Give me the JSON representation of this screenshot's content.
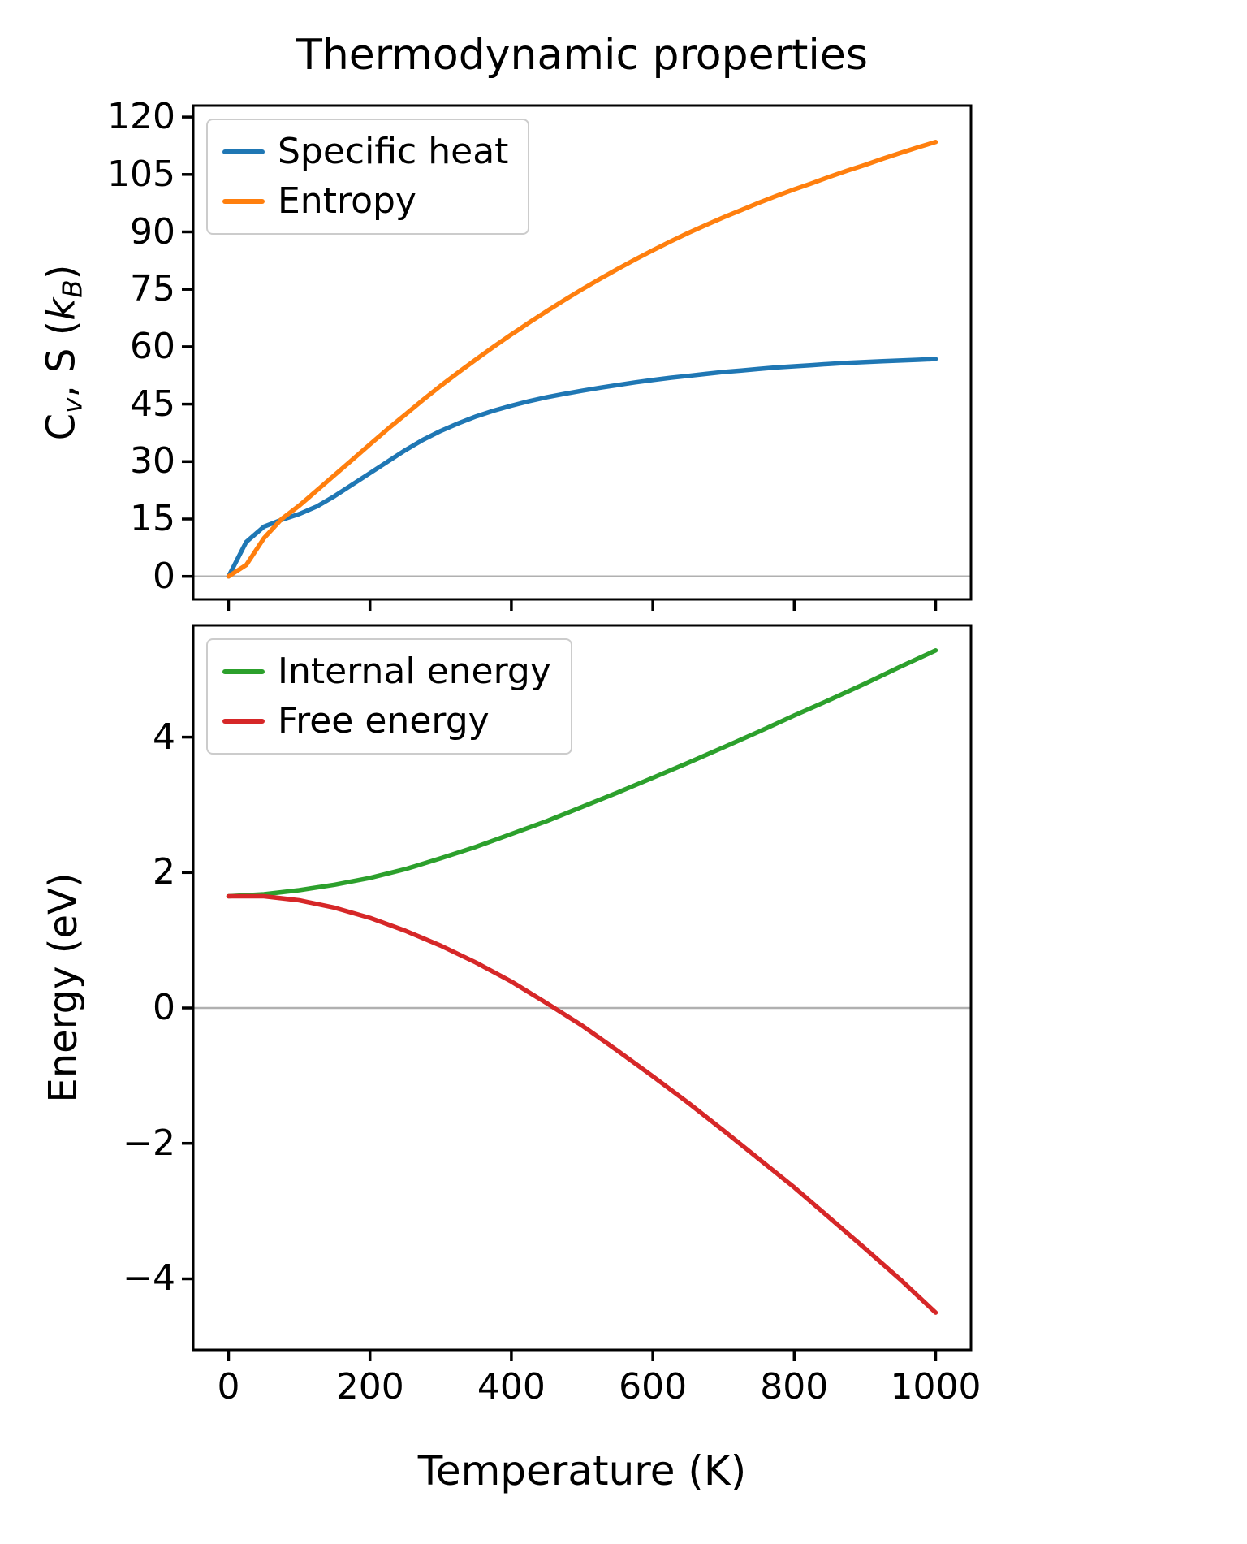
{
  "figure": {
    "title": "Thermodynamic properties",
    "xlabel": "Temperature (K)"
  },
  "chart_data": [
    {
      "type": "line",
      "title": "Thermodynamic properties",
      "xlabel": "Temperature (K)",
      "ylabel": "C$_v$, S ($k_B$)",
      "xlim": [
        -50,
        1050
      ],
      "ylim": [
        -6,
        123
      ],
      "xticks": [
        0,
        200,
        400,
        600,
        800,
        1000
      ],
      "yticks": [
        0,
        15,
        30,
        45,
        60,
        75,
        90,
        105,
        120
      ],
      "show_x_tick_labels": false,
      "zero_line": true,
      "grid": false,
      "legend_position": "upper-left",
      "x": [
        0,
        25,
        50,
        75,
        100,
        125,
        150,
        175,
        200,
        225,
        250,
        275,
        300,
        325,
        350,
        375,
        400,
        425,
        450,
        475,
        500,
        525,
        550,
        575,
        600,
        625,
        650,
        675,
        700,
        725,
        750,
        775,
        800,
        825,
        850,
        875,
        900,
        925,
        950,
        975,
        1000
      ],
      "series": [
        {
          "name": "Specific heat",
          "color": "#1f77b4",
          "values": [
            0,
            9,
            13,
            14.8,
            16.3,
            18.3,
            21,
            24,
            27,
            30,
            33,
            35.7,
            38,
            40,
            41.8,
            43.3,
            44.6,
            45.8,
            46.8,
            47.7,
            48.5,
            49.3,
            50,
            50.7,
            51.3,
            51.9,
            52.4,
            52.9,
            53.4,
            53.8,
            54.2,
            54.6,
            54.9,
            55.2,
            55.5,
            55.8,
            56,
            56.2,
            56.4,
            56.6,
            56.8
          ]
        },
        {
          "name": "Entropy",
          "color": "#ff7f0e",
          "values": [
            0,
            3,
            10,
            15,
            18.5,
            22.5,
            26.5,
            30.5,
            34.5,
            38.5,
            42.3,
            46.1,
            49.8,
            53.3,
            56.7,
            60,
            63.2,
            66.3,
            69.3,
            72.2,
            75,
            77.7,
            80.3,
            82.8,
            85.2,
            87.5,
            89.7,
            91.8,
            93.8,
            95.7,
            97.6,
            99.4,
            101.1,
            102.7,
            104.4,
            106,
            107.5,
            109.1,
            110.6,
            112.1,
            113.5
          ]
        }
      ]
    },
    {
      "type": "line",
      "title": "",
      "xlabel": "Temperature (K)",
      "ylabel": "Energy (eV)",
      "xlim": [
        -50,
        1050
      ],
      "ylim": [
        -5.05,
        5.65
      ],
      "xticks": [
        0,
        200,
        400,
        600,
        800,
        1000
      ],
      "yticks": [
        -4,
        -2,
        0,
        2,
        4
      ],
      "show_x_tick_labels": true,
      "zero_line": true,
      "grid": false,
      "legend_position": "upper-left",
      "x": [
        0,
        50,
        100,
        150,
        200,
        250,
        300,
        350,
        400,
        450,
        500,
        550,
        600,
        650,
        700,
        750,
        800,
        850,
        900,
        950,
        1000
      ],
      "series": [
        {
          "name": "Internal energy",
          "color": "#2ca02c",
          "values": [
            1.65,
            1.68,
            1.74,
            1.82,
            1.92,
            2.05,
            2.21,
            2.38,
            2.57,
            2.76,
            2.97,
            3.18,
            3.4,
            3.62,
            3.85,
            4.08,
            4.32,
            4.55,
            4.79,
            5.04,
            5.28
          ]
        },
        {
          "name": "Free energy",
          "color": "#d62728",
          "values": [
            1.65,
            1.65,
            1.59,
            1.48,
            1.33,
            1.14,
            0.92,
            0.67,
            0.39,
            0.07,
            -0.26,
            -0.63,
            -1.01,
            -1.4,
            -1.81,
            -2.23,
            -2.65,
            -3.1,
            -3.55,
            -4.01,
            -4.5
          ]
        }
      ]
    }
  ],
  "style": {
    "spine_color": "#000000",
    "zero_line_color": "#b0b0b0",
    "legend_border_color": "#cccccc",
    "background": "#ffffff"
  }
}
